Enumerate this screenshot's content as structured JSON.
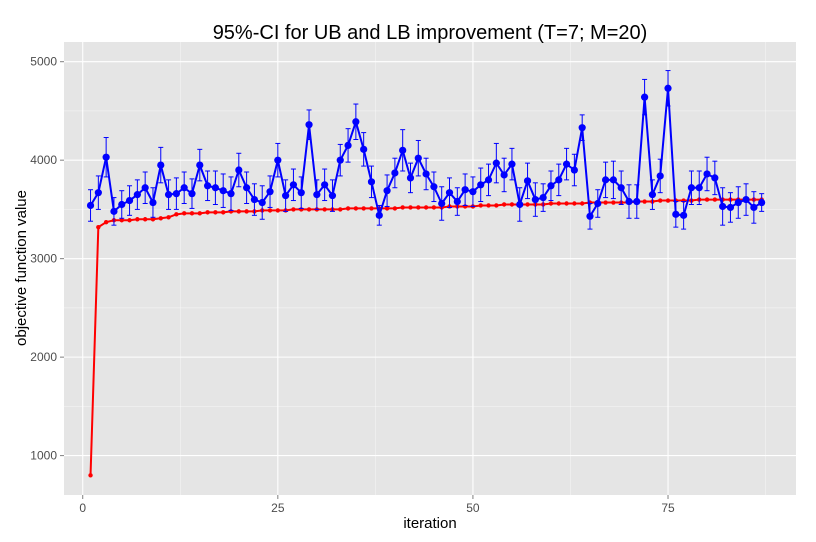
{
  "chart_data": {
    "type": "line",
    "title": "95%-CI for UB and LB improvement (T=7; M=20)",
    "xlabel": "iteration",
    "ylabel": "objective function value",
    "xlim": [
      -2.4,
      91.4
    ],
    "ylim": [
      600,
      5200
    ],
    "xticks": [
      0,
      25,
      50,
      75
    ],
    "yticks": [
      1000,
      2000,
      3000,
      4000,
      5000
    ],
    "grid": true,
    "legend": "none",
    "colors": {
      "upper": "#0000ff",
      "lower": "#ff0000",
      "panel": "#e5e5e5",
      "grid": "#ffffff"
    },
    "series": [
      {
        "x": [
          1,
          2,
          3,
          4,
          5,
          6,
          7,
          8,
          9,
          10,
          11,
          12,
          13,
          14,
          15,
          16,
          17,
          18,
          19,
          20,
          21,
          22,
          23,
          24,
          25,
          26,
          27,
          28,
          29,
          30,
          31,
          32,
          33,
          34,
          35,
          36,
          37,
          38,
          39,
          40,
          41,
          42,
          43,
          44,
          45,
          46,
          47,
          48,
          49,
          50,
          51,
          52,
          53,
          54,
          55,
          56,
          57,
          58,
          59,
          60,
          61,
          62,
          63,
          64,
          65,
          66,
          67,
          68,
          69,
          70,
          71,
          72,
          73,
          74,
          75,
          76,
          77,
          78,
          79,
          80,
          81,
          82,
          83,
          84,
          85,
          86,
          87
        ],
        "values": [
          3540,
          3670,
          4030,
          3480,
          3550,
          3590,
          3650,
          3720,
          3570,
          3950,
          3650,
          3660,
          3720,
          3660,
          3950,
          3740,
          3720,
          3690,
          3660,
          3900,
          3720,
          3600,
          3570,
          3680,
          4000,
          3640,
          3750,
          3670,
          4360,
          3650,
          3750,
          3640,
          4000,
          4150,
          4390,
          4110,
          3780,
          3440,
          3690,
          3870,
          4100,
          3820,
          4020,
          3860,
          3730,
          3560,
          3670,
          3580,
          3700,
          3680,
          3750,
          3800,
          3970,
          3850,
          3960,
          3550,
          3790,
          3600,
          3620,
          3740,
          3800,
          3960,
          3900,
          4330,
          3430,
          3560,
          3800,
          3800,
          3720,
          3580,
          3580,
          4640,
          3650,
          3840,
          4730,
          3450,
          3440,
          3720,
          3720,
          3860,
          3820,
          3530,
          3520,
          3570,
          3600,
          3520,
          3570
        ],
        "error": [
          160,
          170,
          200,
          140,
          140,
          150,
          150,
          160,
          150,
          180,
          150,
          160,
          160,
          150,
          160,
          150,
          170,
          170,
          170,
          170,
          160,
          160,
          170,
          160,
          170,
          160,
          160,
          160,
          150,
          150,
          160,
          160,
          160,
          170,
          180,
          170,
          160,
          100,
          160,
          150,
          210,
          150,
          180,
          160,
          150,
          170,
          150,
          140,
          160,
          150,
          170,
          160,
          200,
          170,
          160,
          170,
          180,
          170,
          140,
          150,
          160,
          160,
          160,
          130,
          130,
          140,
          180,
          190,
          170,
          170,
          170,
          180,
          150,
          170,
          180,
          130,
          140,
          170,
          170,
          170,
          170,
          190,
          150,
          160,
          160,
          160,
          90
        ]
      },
      {
        "x": [
          1,
          2,
          3,
          4,
          5,
          6,
          7,
          8,
          9,
          10,
          11,
          12,
          13,
          14,
          15,
          16,
          17,
          18,
          19,
          20,
          21,
          22,
          23,
          24,
          25,
          26,
          27,
          28,
          29,
          30,
          31,
          32,
          33,
          34,
          35,
          36,
          37,
          38,
          39,
          40,
          41,
          42,
          43,
          44,
          45,
          46,
          47,
          48,
          49,
          50,
          51,
          52,
          53,
          54,
          55,
          56,
          57,
          58,
          59,
          60,
          61,
          62,
          63,
          64,
          65,
          66,
          67,
          68,
          69,
          70,
          71,
          72,
          73,
          74,
          75,
          76,
          77,
          78,
          79,
          80,
          81,
          82,
          83,
          84,
          85,
          86,
          87
        ],
        "values": [
          800,
          3320,
          3370,
          3390,
          3390,
          3390,
          3400,
          3400,
          3400,
          3410,
          3420,
          3450,
          3460,
          3460,
          3460,
          3470,
          3470,
          3470,
          3480,
          3480,
          3480,
          3480,
          3490,
          3490,
          3490,
          3490,
          3500,
          3500,
          3500,
          3500,
          3500,
          3500,
          3500,
          3510,
          3510,
          3510,
          3510,
          3510,
          3510,
          3510,
          3520,
          3520,
          3520,
          3520,
          3520,
          3520,
          3530,
          3530,
          3530,
          3530,
          3540,
          3540,
          3540,
          3550,
          3550,
          3550,
          3550,
          3550,
          3550,
          3560,
          3560,
          3560,
          3560,
          3560,
          3570,
          3570,
          3570,
          3570,
          3570,
          3570,
          3580,
          3580,
          3580,
          3590,
          3590,
          3590,
          3590,
          3590,
          3600,
          3600,
          3600,
          3600,
          3600,
          3600,
          3600,
          3600,
          3600
        ]
      }
    ]
  }
}
